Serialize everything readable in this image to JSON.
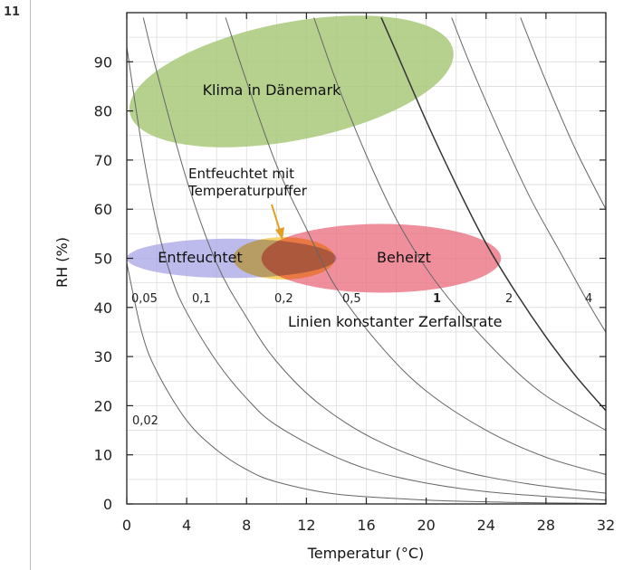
{
  "figure_number": "11",
  "chart_data": {
    "type": "scatter",
    "xlabel": "Temperatur  (°C)",
    "ylabel": "RH (%)",
    "xlim": [
      0,
      32
    ],
    "ylim": [
      0,
      100
    ],
    "xticks": [
      0,
      4,
      8,
      12,
      16,
      20,
      24,
      28,
      32
    ],
    "yticks": [
      0,
      10,
      20,
      30,
      40,
      50,
      60,
      70,
      80,
      90
    ],
    "grid": true,
    "regions": [
      {
        "label": "Klima in Dänemark",
        "cx": 11,
        "cy": 86,
        "rx": 11,
        "ry": 12,
        "angle": -11,
        "color": "#a9c97a"
      },
      {
        "label": "Entfeuchtet",
        "cx": 7,
        "cy": 50,
        "rx": 7,
        "ry": 4,
        "angle": 0,
        "color": "#a9a8e6"
      },
      {
        "label": "Entfeuchtet mit Temperaturpuffer",
        "cx": 10.5,
        "cy": 50,
        "rx": 3.4,
        "ry": 4.3,
        "angle": 0,
        "color": "#f6c840"
      },
      {
        "label": "Beheizt",
        "cx": 17,
        "cy": 50,
        "rx": 8,
        "ry": 7,
        "angle": 0,
        "color": "#ec7080"
      }
    ],
    "rate_lines": {
      "title": "Linien konstanter Zerfallsrate",
      "labels": [
        "0,02",
        "0,05",
        "0,1",
        "0,2",
        "0,5",
        "1",
        "2",
        "4"
      ],
      "bold_label": "1",
      "curves": [
        [
          [
            0,
            49
          ],
          [
            1,
            35
          ],
          [
            2,
            27
          ],
          [
            4,
            17
          ],
          [
            6,
            11
          ],
          [
            8,
            7
          ],
          [
            10,
            4.5
          ],
          [
            14,
            2
          ],
          [
            20,
            0.8
          ],
          [
            26,
            0.3
          ],
          [
            32,
            0.1
          ]
        ],
        [
          [
            0,
            93
          ],
          [
            1,
            73
          ],
          [
            2,
            57
          ],
          [
            3,
            46
          ],
          [
            4,
            39
          ],
          [
            6,
            29
          ],
          [
            8,
            21.5
          ],
          [
            10,
            16
          ],
          [
            14,
            9.5
          ],
          [
            18,
            5.5
          ],
          [
            24,
            2.5
          ],
          [
            32,
            0.8
          ]
        ],
        [
          [
            1.1,
            99
          ],
          [
            2,
            88
          ],
          [
            4,
            66
          ],
          [
            6,
            49
          ],
          [
            8,
            38
          ],
          [
            10,
            29
          ],
          [
            13,
            20
          ],
          [
            17,
            12.5
          ],
          [
            22,
            7
          ],
          [
            27,
            4
          ],
          [
            32,
            2.2
          ]
        ],
        [
          [
            6.6,
            99
          ],
          [
            8,
            86
          ],
          [
            10,
            69
          ],
          [
            12,
            56
          ],
          [
            14,
            44
          ],
          [
            17,
            32
          ],
          [
            20,
            23
          ],
          [
            24,
            15
          ],
          [
            28,
            9.5
          ],
          [
            32,
            6
          ]
        ],
        [
          [
            12.5,
            99
          ],
          [
            14,
            86
          ],
          [
            16,
            71
          ],
          [
            18,
            58
          ],
          [
            20,
            48
          ],
          [
            22,
            40
          ],
          [
            25,
            30
          ],
          [
            28,
            22
          ],
          [
            32,
            15
          ]
        ],
        [
          [
            17,
            99
          ],
          [
            18,
            92
          ],
          [
            20,
            78
          ],
          [
            22,
            65
          ],
          [
            24,
            53
          ],
          [
            26,
            43
          ],
          [
            28,
            34
          ],
          [
            30,
            26
          ],
          [
            32,
            19
          ]
        ],
        [
          [
            21.7,
            99
          ],
          [
            23,
            89
          ],
          [
            25,
            75
          ],
          [
            27,
            62
          ],
          [
            29,
            51
          ],
          [
            31,
            40
          ],
          [
            32,
            35
          ]
        ],
        [
          [
            26.3,
            99
          ],
          [
            28,
            86
          ],
          [
            30,
            72
          ],
          [
            32,
            60
          ]
        ]
      ]
    },
    "annotations": [
      {
        "text": "Klima in Dänemark"
      },
      {
        "text": "Entfeuchtet"
      },
      {
        "text": "Beheizt"
      },
      {
        "text": "Entfeuchtet mit\nTemperaturpuffer"
      },
      {
        "text": "Linien konstanter Zerfallsrate"
      }
    ]
  }
}
